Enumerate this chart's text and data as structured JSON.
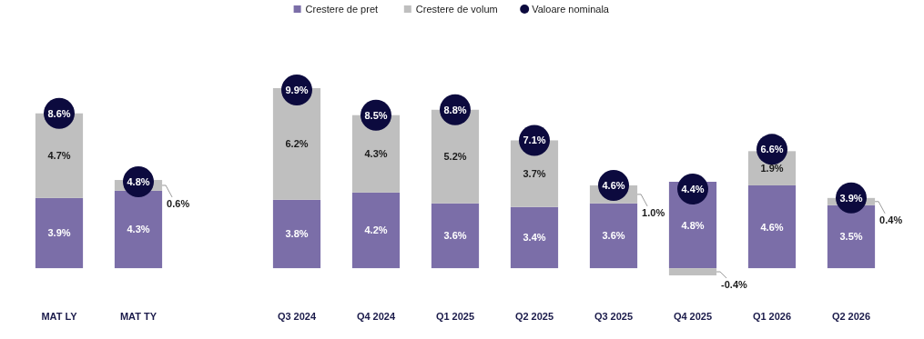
{
  "chart_data": {
    "type": "bar",
    "stacked": true,
    "categories": [
      "MAT LY",
      "MAT TY",
      null,
      "Q3 2024",
      "Q4 2024",
      "Q1 2025",
      "Q2 2025",
      "Q3 2025",
      "Q4 2025",
      "Q1 2026",
      "Q2 2026"
    ],
    "series": [
      {
        "name": "Crestere de pret",
        "color": "#7b6ea8",
        "values": [
          3.9,
          4.3,
          null,
          3.8,
          4.2,
          3.6,
          3.4,
          3.6,
          4.8,
          4.6,
          3.5
        ],
        "value_labels": [
          "3.9%",
          "4.3%",
          null,
          "3.8%",
          "4.2%",
          "3.6%",
          "3.4%",
          "3.6%",
          "4.8%",
          "4.6%",
          "3.5%"
        ]
      },
      {
        "name": "Crestere de volum",
        "color": "#bfbfbf",
        "values": [
          4.7,
          0.6,
          null,
          6.2,
          4.3,
          5.2,
          3.7,
          1.0,
          -0.4,
          1.9,
          0.4
        ],
        "value_labels": [
          "4.7%",
          "0.6%",
          null,
          "6.2%",
          "4.3%",
          "5.2%",
          "3.7%",
          "1.0%",
          "-0.4%",
          "1.9%",
          "0.4%"
        ]
      },
      {
        "name": "Valoare nominala",
        "type": "scatter",
        "marker": "circle",
        "color": "#0c0a3e",
        "values": [
          8.6,
          4.8,
          null,
          9.9,
          8.5,
          8.8,
          7.1,
          4.6,
          4.4,
          6.6,
          3.9
        ],
        "value_labels": [
          "8.6%",
          "4.8%",
          null,
          "9.9%",
          "8.5%",
          "8.8%",
          "7.1%",
          "4.6%",
          "4.4%",
          "6.6%",
          "3.9%"
        ]
      }
    ],
    "tick_labels": "x",
    "legend": "top"
  }
}
